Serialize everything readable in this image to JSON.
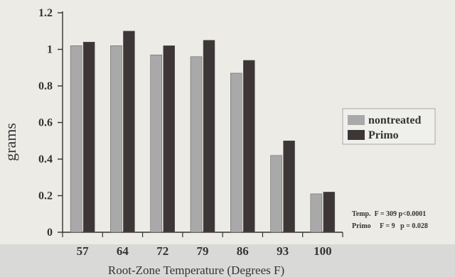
{
  "chart_data": {
    "type": "bar",
    "xlabel": "Root-Zone Temperature (Degrees F)",
    "ylabel": "grams",
    "categories": [
      "57",
      "64",
      "72",
      "79",
      "86",
      "93",
      "100"
    ],
    "ylim": [
      0,
      1.2
    ],
    "yticks": [
      "0",
      "0.2",
      "0.4",
      "0.6",
      "0.8",
      "1",
      "1.2"
    ],
    "series": [
      {
        "name": "nontreated",
        "color": "#a9a9a9",
        "values": [
          1.02,
          1.02,
          0.97,
          0.96,
          0.87,
          0.42,
          0.21
        ]
      },
      {
        "name": "Primo",
        "color": "#3d3637",
        "values": [
          1.04,
          1.1,
          1.02,
          1.05,
          0.94,
          0.5,
          0.22
        ]
      }
    ],
    "legend_position": "right",
    "grid": false,
    "annotations": [
      "Temp.  F = 309 p<0.0001",
      "Primo     F = 9   p = 0.028"
    ]
  }
}
